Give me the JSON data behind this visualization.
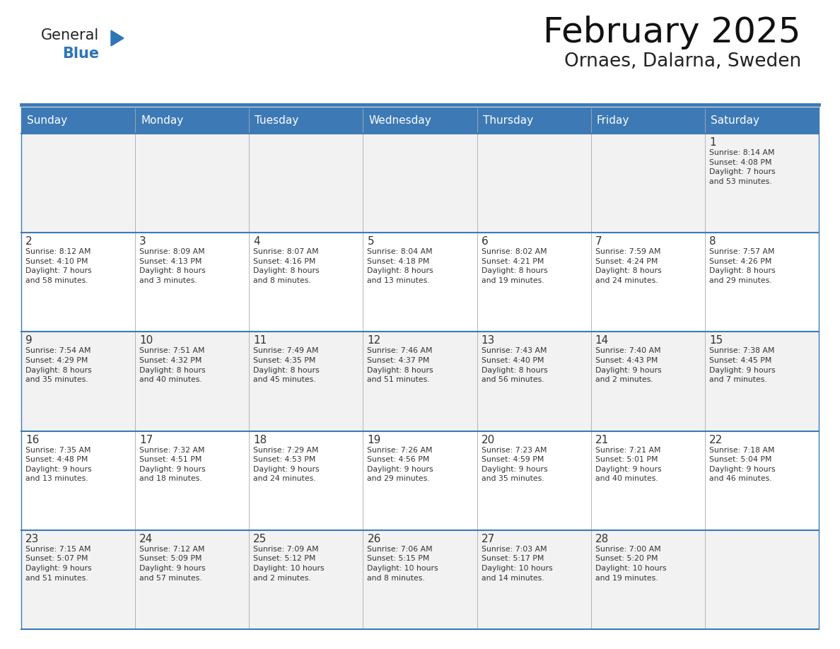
{
  "title": "February 2025",
  "subtitle": "Ornaes, Dalarna, Sweden",
  "header_bg": "#3D7AB5",
  "header_text_color": "#FFFFFF",
  "cell_bg_week1": "#F2F2F2",
  "cell_bg_week2": "#FFFFFF",
  "cell_bg_week3": "#F2F2F2",
  "cell_bg_week4": "#FFFFFF",
  "cell_bg_week5": "#F2F2F2",
  "border_color": "#3D7AB5",
  "text_color": "#333333",
  "days_of_week": [
    "Sunday",
    "Monday",
    "Tuesday",
    "Wednesday",
    "Thursday",
    "Friday",
    "Saturday"
  ],
  "weeks": [
    [
      {
        "day": "",
        "info": ""
      },
      {
        "day": "",
        "info": ""
      },
      {
        "day": "",
        "info": ""
      },
      {
        "day": "",
        "info": ""
      },
      {
        "day": "",
        "info": ""
      },
      {
        "day": "",
        "info": ""
      },
      {
        "day": "1",
        "info": "Sunrise: 8:14 AM\nSunset: 4:08 PM\nDaylight: 7 hours\nand 53 minutes."
      }
    ],
    [
      {
        "day": "2",
        "info": "Sunrise: 8:12 AM\nSunset: 4:10 PM\nDaylight: 7 hours\nand 58 minutes."
      },
      {
        "day": "3",
        "info": "Sunrise: 8:09 AM\nSunset: 4:13 PM\nDaylight: 8 hours\nand 3 minutes."
      },
      {
        "day": "4",
        "info": "Sunrise: 8:07 AM\nSunset: 4:16 PM\nDaylight: 8 hours\nand 8 minutes."
      },
      {
        "day": "5",
        "info": "Sunrise: 8:04 AM\nSunset: 4:18 PM\nDaylight: 8 hours\nand 13 minutes."
      },
      {
        "day": "6",
        "info": "Sunrise: 8:02 AM\nSunset: 4:21 PM\nDaylight: 8 hours\nand 19 minutes."
      },
      {
        "day": "7",
        "info": "Sunrise: 7:59 AM\nSunset: 4:24 PM\nDaylight: 8 hours\nand 24 minutes."
      },
      {
        "day": "8",
        "info": "Sunrise: 7:57 AM\nSunset: 4:26 PM\nDaylight: 8 hours\nand 29 minutes."
      }
    ],
    [
      {
        "day": "9",
        "info": "Sunrise: 7:54 AM\nSunset: 4:29 PM\nDaylight: 8 hours\nand 35 minutes."
      },
      {
        "day": "10",
        "info": "Sunrise: 7:51 AM\nSunset: 4:32 PM\nDaylight: 8 hours\nand 40 minutes."
      },
      {
        "day": "11",
        "info": "Sunrise: 7:49 AM\nSunset: 4:35 PM\nDaylight: 8 hours\nand 45 minutes."
      },
      {
        "day": "12",
        "info": "Sunrise: 7:46 AM\nSunset: 4:37 PM\nDaylight: 8 hours\nand 51 minutes."
      },
      {
        "day": "13",
        "info": "Sunrise: 7:43 AM\nSunset: 4:40 PM\nDaylight: 8 hours\nand 56 minutes."
      },
      {
        "day": "14",
        "info": "Sunrise: 7:40 AM\nSunset: 4:43 PM\nDaylight: 9 hours\nand 2 minutes."
      },
      {
        "day": "15",
        "info": "Sunrise: 7:38 AM\nSunset: 4:45 PM\nDaylight: 9 hours\nand 7 minutes."
      }
    ],
    [
      {
        "day": "16",
        "info": "Sunrise: 7:35 AM\nSunset: 4:48 PM\nDaylight: 9 hours\nand 13 minutes."
      },
      {
        "day": "17",
        "info": "Sunrise: 7:32 AM\nSunset: 4:51 PM\nDaylight: 9 hours\nand 18 minutes."
      },
      {
        "day": "18",
        "info": "Sunrise: 7:29 AM\nSunset: 4:53 PM\nDaylight: 9 hours\nand 24 minutes."
      },
      {
        "day": "19",
        "info": "Sunrise: 7:26 AM\nSunset: 4:56 PM\nDaylight: 9 hours\nand 29 minutes."
      },
      {
        "day": "20",
        "info": "Sunrise: 7:23 AM\nSunset: 4:59 PM\nDaylight: 9 hours\nand 35 minutes."
      },
      {
        "day": "21",
        "info": "Sunrise: 7:21 AM\nSunset: 5:01 PM\nDaylight: 9 hours\nand 40 minutes."
      },
      {
        "day": "22",
        "info": "Sunrise: 7:18 AM\nSunset: 5:04 PM\nDaylight: 9 hours\nand 46 minutes."
      }
    ],
    [
      {
        "day": "23",
        "info": "Sunrise: 7:15 AM\nSunset: 5:07 PM\nDaylight: 9 hours\nand 51 minutes."
      },
      {
        "day": "24",
        "info": "Sunrise: 7:12 AM\nSunset: 5:09 PM\nDaylight: 9 hours\nand 57 minutes."
      },
      {
        "day": "25",
        "info": "Sunrise: 7:09 AM\nSunset: 5:12 PM\nDaylight: 10 hours\nand 2 minutes."
      },
      {
        "day": "26",
        "info": "Sunrise: 7:06 AM\nSunset: 5:15 PM\nDaylight: 10 hours\nand 8 minutes."
      },
      {
        "day": "27",
        "info": "Sunrise: 7:03 AM\nSunset: 5:17 PM\nDaylight: 10 hours\nand 14 minutes."
      },
      {
        "day": "28",
        "info": "Sunrise: 7:00 AM\nSunset: 5:20 PM\nDaylight: 10 hours\nand 19 minutes."
      },
      {
        "day": "",
        "info": ""
      }
    ]
  ],
  "logo_color1": "#222222",
  "logo_color2": "#2E75B6",
  "logo_triangle_color": "#2E75B6",
  "week_bg_colors": [
    "#F2F2F2",
    "#FFFFFF",
    "#F2F2F2",
    "#FFFFFF",
    "#F2F2F2"
  ]
}
